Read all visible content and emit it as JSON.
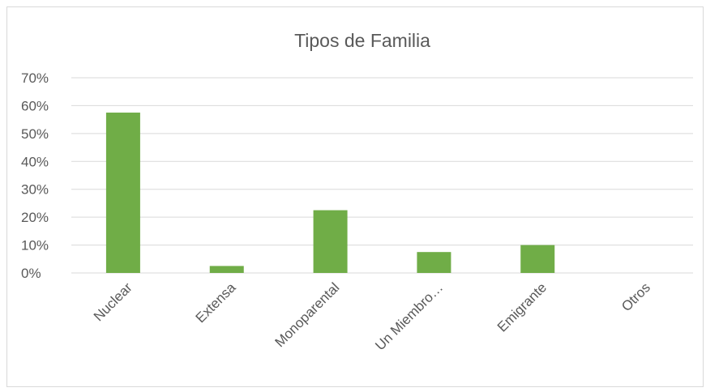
{
  "chart_data": {
    "type": "bar",
    "title": "Tipos de Familia",
    "categories": [
      "Nuclear",
      "Extensa",
      "Monoparental",
      "Un Miembro…",
      "Emigrante",
      "Otros"
    ],
    "values": [
      57.5,
      2.5,
      22.5,
      7.5,
      10,
      0
    ],
    "color": "#70ad47",
    "ylim": [
      0,
      70
    ],
    "yticks": [
      {
        "value": 0,
        "label": "0%"
      },
      {
        "value": 10,
        "label": "10%"
      },
      {
        "value": 20,
        "label": "20%"
      },
      {
        "value": 30,
        "label": "30%"
      },
      {
        "value": 40,
        "label": "40%"
      },
      {
        "value": 50,
        "label": "50%"
      },
      {
        "value": 60,
        "label": "60%"
      },
      {
        "value": 70,
        "label": "70%"
      }
    ],
    "grid": true
  }
}
